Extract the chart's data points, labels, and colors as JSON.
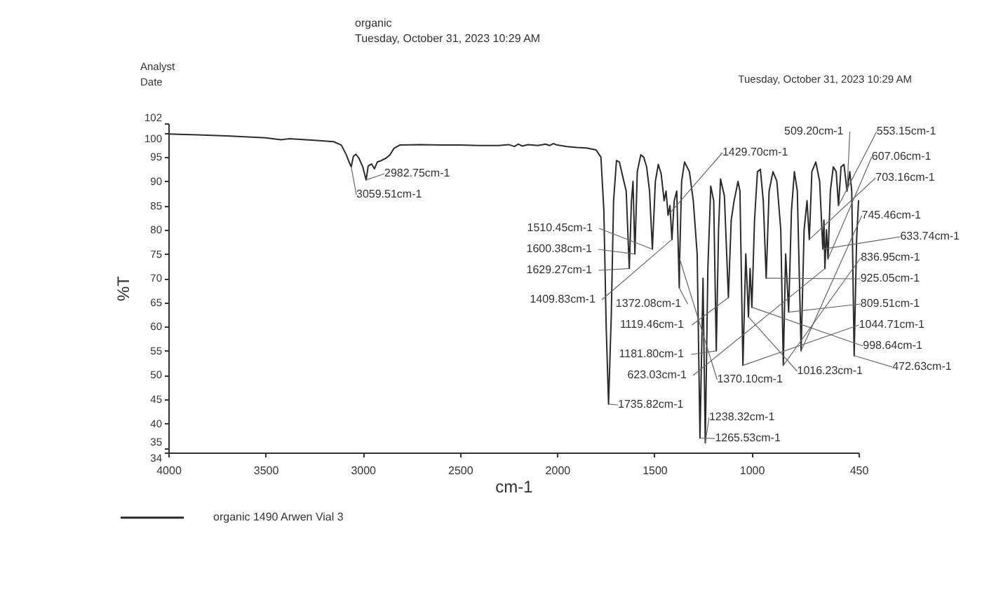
{
  "chart_data": {
    "type": "line",
    "title": "organic",
    "subtitle": "Tuesday, October 31, 2023 10:29 AM",
    "xlabel": "cm-1",
    "ylabel": "%T",
    "xlim": [
      4000,
      450
    ],
    "xticks": [
      4000,
      3500,
      3000,
      2500,
      2000,
      1500,
      1000,
      450
    ],
    "ylim": [
      34,
      102
    ],
    "yticks": [
      34,
      35,
      40,
      45,
      50,
      55,
      60,
      65,
      70,
      75,
      80,
      85,
      90,
      95,
      100,
      102
    ],
    "legend": "bottom left",
    "line_style": "solid",
    "x": [
      4000,
      3850,
      3700,
      3500,
      3420,
      3380,
      3250,
      3150,
      3110,
      3085,
      3070,
      3059.51,
      3048,
      3035,
      3020,
      3000,
      2982.75,
      2972,
      2955,
      2940,
      2925,
      2905,
      2880,
      2860,
      2840,
      2810,
      2700,
      2600,
      2500,
      2400,
      2300,
      2250,
      2220,
      2200,
      2180,
      2150,
      2100,
      2060,
      2040,
      2020,
      2000,
      1950,
      1900,
      1850,
      1800,
      1775,
      1760,
      1748,
      1735.82,
      1722,
      1710,
      1695,
      1680,
      1660,
      1645,
      1629.27,
      1618,
      1610,
      1600.38,
      1588,
      1570,
      1555,
      1540,
      1525,
      1510.45,
      1495,
      1480,
      1465,
      1450,
      1440,
      1429.7,
      1420,
      1409.83,
      1398,
      1385,
      1372.08,
      1370.1,
      1360,
      1345,
      1320,
      1300,
      1280,
      1265.53,
      1250,
      1238.32,
      1225,
      1210,
      1195,
      1181.8,
      1170,
      1160,
      1140,
      1119.46,
      1105,
      1090,
      1070,
      1060,
      1044.71,
      1030,
      1016.23,
      1008,
      998.64,
      985,
      970,
      955,
      940,
      925.05,
      910,
      890,
      870,
      850,
      836.95,
      825,
      809.51,
      795,
      780,
      765,
      745.46,
      730,
      715,
      703.16,
      690,
      670,
      650,
      633.74,
      628,
      623.03,
      615,
      607.06,
      595,
      580,
      565,
      553.15,
      540,
      525,
      509.2,
      495,
      485,
      472.63,
      460,
      450
    ],
    "series": [
      {
        "name": "organic 1490 Arwen Vial 3",
        "color": "#2b2b2b",
        "values": [
          99.8,
          99.6,
          99.4,
          99.0,
          98.6,
          98.8,
          98.5,
          98.2,
          97.5,
          95.5,
          94.0,
          93.0,
          95.2,
          95.6,
          94.8,
          93.0,
          90.3,
          93.2,
          93.6,
          92.6,
          94.0,
          94.3,
          94.8,
          95.5,
          96.8,
          97.5,
          97.6,
          97.5,
          97.5,
          97.4,
          97.4,
          97.6,
          97.2,
          97.7,
          97.3,
          97.6,
          97.4,
          97.7,
          97.4,
          97.8,
          97.5,
          97.2,
          97.0,
          96.9,
          96.5,
          95.0,
          84,
          60,
          44,
          62,
          86,
          94.3,
          94.0,
          90.5,
          88,
          72,
          86,
          90,
          75,
          92,
          95.5,
          95,
          93,
          88,
          76,
          90,
          93.5,
          91.5,
          86,
          88,
          83,
          85,
          78,
          86,
          88,
          68,
          74,
          90,
          94,
          92,
          86,
          75,
          37,
          70,
          36,
          72,
          89,
          86,
          55,
          80,
          90.5,
          87,
          66,
          82,
          86,
          90,
          88,
          52,
          75,
          62,
          72,
          64,
          82,
          92,
          92.5,
          86,
          70,
          88,
          92,
          90,
          80,
          52,
          75,
          63,
          84,
          92,
          88,
          55,
          80,
          86,
          78,
          92,
          94,
          90,
          76,
          82,
          72,
          80,
          74,
          88,
          93,
          92,
          85,
          93,
          93.5,
          88,
          92,
          88,
          54,
          78,
          86
        ]
      }
    ],
    "annotations": [
      "Analyst",
      "Date",
      "Tuesday, October 31, 2023 10:29 AM",
      {
        "text": "3059.51cm-1",
        "x": 3059.51,
        "y": 93.0
      },
      {
        "text": "2982.75cm-1",
        "x": 2982.75,
        "y": 90.3
      },
      {
        "text": "1735.82cm-1",
        "x": 1735.82,
        "y": 44
      },
      {
        "text": "1629.27cm-1",
        "x": 1629.27,
        "y": 72
      },
      {
        "text": "1600.38cm-1",
        "x": 1600.38,
        "y": 75
      },
      {
        "text": "1510.45cm-1",
        "x": 1510.45,
        "y": 76
      },
      {
        "text": "1429.70cm-1",
        "x": 1429.7,
        "y": 83
      },
      {
        "text": "1409.83cm-1",
        "x": 1409.83,
        "y": 78
      },
      {
        "text": "1372.08cm-1",
        "x": 1372.08,
        "y": 68
      },
      {
        "text": "1370.10cm-1",
        "x": 1370.1,
        "y": 74
      },
      {
        "text": "1265.53cm-1",
        "x": 1265.53,
        "y": 37
      },
      {
        "text": "1238.32cm-1",
        "x": 1238.32,
        "y": 36
      },
      {
        "text": "1181.80cm-1",
        "x": 1181.8,
        "y": 55
      },
      {
        "text": "1119.46cm-1",
        "x": 1119.46,
        "y": 66
      },
      {
        "text": "1044.71cm-1",
        "x": 1044.71,
        "y": 52
      },
      {
        "text": "1016.23cm-1",
        "x": 1016.23,
        "y": 62
      },
      {
        "text": "998.64cm-1",
        "x": 998.64,
        "y": 64
      },
      {
        "text": "925.05cm-1",
        "x": 925.05,
        "y": 70
      },
      {
        "text": "836.95cm-1",
        "x": 836.95,
        "y": 52
      },
      {
        "text": "809.51cm-1",
        "x": 809.51,
        "y": 63
      },
      {
        "text": "745.46cm-1",
        "x": 745.46,
        "y": 55
      },
      {
        "text": "703.16cm-1",
        "x": 703.16,
        "y": 78
      },
      {
        "text": "633.74cm-1",
        "x": 633.74,
        "y": 76
      },
      {
        "text": "623.03cm-1",
        "x": 623.03,
        "y": 72
      },
      {
        "text": "607.06cm-1",
        "x": 607.06,
        "y": 74
      },
      {
        "text": "553.15cm-1",
        "x": 553.15,
        "y": 85
      },
      {
        "text": "509.20cm-1",
        "x": 509.2,
        "y": 88
      },
      {
        "text": "472.63cm-1",
        "x": 472.63,
        "y": 54
      }
    ]
  }
}
